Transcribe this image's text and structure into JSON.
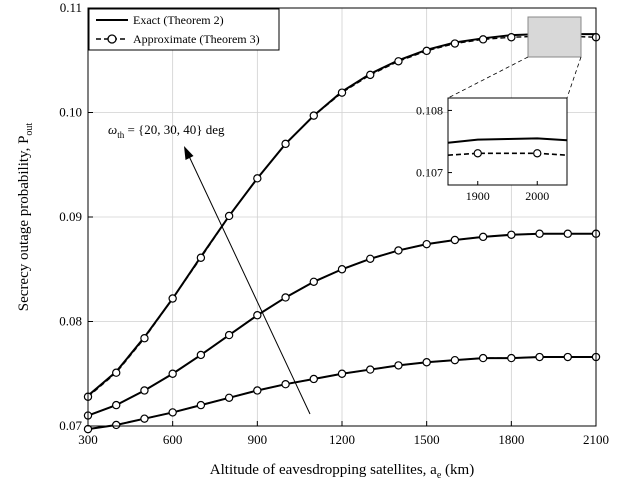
{
  "chart_data": {
    "type": "line",
    "title": "",
    "xlabel": "Altitude of eavesdropping satellites, a",
    "xlabel_sub": "e",
    "xlabel_unit": " (km)",
    "ylabel": "Secrecy outage probability, P",
    "ylabel_sub": "out",
    "xlim": [
      300,
      2100
    ],
    "ylim": [
      0.07,
      0.11
    ],
    "xticks": [
      300,
      600,
      900,
      1200,
      1500,
      1800,
      2100
    ],
    "yticks": [
      "0.07",
      "0.08",
      "0.09",
      "0.10",
      "0.11"
    ],
    "grid": true,
    "legend": {
      "position": "top-left",
      "entries": [
        {
          "label": "Exact (Theorem 2)",
          "style": "solid"
        },
        {
          "label": "Approximate (Theorem 3)",
          "style": "dashed-circle"
        }
      ]
    },
    "x": [
      300,
      400,
      500,
      600,
      700,
      800,
      900,
      1000,
      1100,
      1200,
      1300,
      1400,
      1500,
      1600,
      1700,
      1800,
      1900,
      2000,
      2100
    ],
    "series": [
      {
        "exact": [
          0.0729,
          0.0752,
          0.0785,
          0.0822,
          0.0862,
          0.0901,
          0.0937,
          0.097,
          0.0997,
          0.102,
          0.1037,
          0.105,
          0.106,
          0.1067,
          0.1071,
          0.1074,
          0.1075,
          0.1075,
          0.1075
        ],
        "approx": [
          0.0728,
          0.0751,
          0.0784,
          0.0822,
          0.0861,
          0.0901,
          0.0937,
          0.097,
          0.0997,
          0.1019,
          0.1036,
          0.1049,
          0.1059,
          0.1066,
          0.107,
          0.1072,
          0.1073,
          0.1073,
          0.1072
        ]
      },
      {
        "exact": [
          0.071,
          0.072,
          0.0734,
          0.075,
          0.0768,
          0.0787,
          0.0806,
          0.0823,
          0.0838,
          0.085,
          0.086,
          0.0868,
          0.0874,
          0.0878,
          0.0881,
          0.0883,
          0.0884,
          0.0884,
          0.0884
        ],
        "approx": [
          0.071,
          0.072,
          0.0734,
          0.075,
          0.0768,
          0.0787,
          0.0806,
          0.0823,
          0.0838,
          0.085,
          0.086,
          0.0868,
          0.0874,
          0.0878,
          0.0881,
          0.0883,
          0.0884,
          0.0884,
          0.0884
        ]
      },
      {
        "exact": [
          0.0697,
          0.0701,
          0.0707,
          0.0713,
          0.072,
          0.0727,
          0.0734,
          0.074,
          0.0745,
          0.075,
          0.0754,
          0.0758,
          0.0761,
          0.0763,
          0.0765,
          0.0765,
          0.0766,
          0.0766,
          0.0766
        ],
        "approx": [
          0.0697,
          0.0701,
          0.0707,
          0.0713,
          0.072,
          0.0727,
          0.0734,
          0.074,
          0.0745,
          0.075,
          0.0754,
          0.0758,
          0.0761,
          0.0763,
          0.0765,
          0.0765,
          0.0766,
          0.0766,
          0.0766
        ]
      }
    ],
    "annotation": {
      "symbol": "ω",
      "sub": "th",
      "text": " = {20, 30, 40} deg"
    },
    "inset": {
      "xlim": [
        1850,
        2050
      ],
      "ylim": [
        0.1068,
        0.1082
      ],
      "xticks": [
        1900,
        2000
      ],
      "yticks": [
        "0.107",
        "0.108"
      ],
      "x": [
        1850,
        1900,
        1950,
        2000,
        2050
      ],
      "exact": [
        0.10748,
        0.10753,
        0.10754,
        0.10755,
        0.10752
      ],
      "approx": [
        0.10728,
        0.10731,
        0.10731,
        0.10731,
        0.10728
      ],
      "markers_x": [
        1900,
        2000
      ]
    }
  }
}
